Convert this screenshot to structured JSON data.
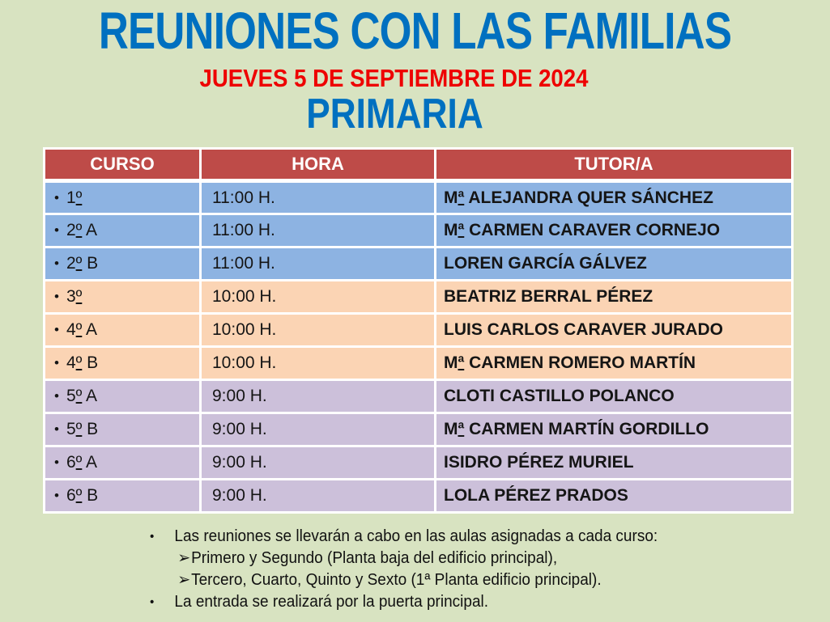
{
  "page": {
    "background_color": "#d8e3c1",
    "title": "REUNIONES CON LAS FAMILIAS",
    "title_color": "#0070C0",
    "subtitle": "JUEVES 5 DE SEPTIEMBRE DE 2024",
    "subtitle_color": "#ee0000",
    "section": "PRIMARIA",
    "section_color": "#0070C0"
  },
  "table": {
    "columns": [
      "CURSO",
      "HORA",
      "TUTOR/A"
    ],
    "header_bg": "#be4b48",
    "header_text_color": "#ffffff",
    "border_color": "#ffffff",
    "group_colors": {
      "blue": "#8db3e2",
      "peach": "#fbd4b4",
      "purple": "#ccc0da"
    },
    "bullet_glyph": "•",
    "rows": [
      {
        "curso": "1º",
        "hora": "11:00 H.",
        "tutor": "Mª ALEJANDRA QUER SÁNCHEZ",
        "color": "#8db3e2"
      },
      {
        "curso": "2º A",
        "hora": "11:00 H.",
        "tutor": "Mª CARMEN CARAVER CORNEJO",
        "color": "#8db3e2"
      },
      {
        "curso": "2º B",
        "hora": "11:00 H.",
        "tutor": "LOREN GARCÍA GÁLVEZ",
        "color": "#8db3e2"
      },
      {
        "curso": "3º",
        "hora": "10:00 H.",
        "tutor": "BEATRIZ BERRAL PÉREZ",
        "color": "#fbd4b4"
      },
      {
        "curso": "4º A",
        "hora": "10:00 H.",
        "tutor": "LUIS CARLOS CARAVER JURADO",
        "color": "#fbd4b4"
      },
      {
        "curso": "4º B",
        "hora": "10:00 H.",
        "tutor": "Mª CARMEN ROMERO MARTÍN",
        "color": "#fbd4b4"
      },
      {
        "curso": "5º A",
        "hora": "9:00 H.",
        "tutor": "CLOTI CASTILLO POLANCO",
        "color": "#ccc0da"
      },
      {
        "curso": "5º B",
        "hora": "9:00 H.",
        "tutor": "Mª CARMEN MARTÍN GORDILLO",
        "color": "#ccc0da"
      },
      {
        "curso": "6º A",
        "hora": "9:00 H.",
        "tutor": "ISIDRO PÉREZ MURIEL",
        "color": "#ccc0da"
      },
      {
        "curso": "6º B",
        "hora": "9:00 H.",
        "tutor": "LOLA PÉREZ PRADOS",
        "color": "#ccc0da"
      }
    ]
  },
  "notes": {
    "bullet_glyph": "•",
    "arrow_glyph": "➢",
    "items": [
      {
        "text": "Las reuniones se llevarán a cabo en las aulas asignadas a cada curso:",
        "subitems": [
          "Primero y Segundo (Planta baja del edificio principal),",
          "Tercero, Cuarto, Quinto y Sexto (1ª Planta edificio principal)."
        ]
      },
      {
        "text": "La entrada se realizará por la puerta principal.",
        "subitems": []
      }
    ]
  }
}
